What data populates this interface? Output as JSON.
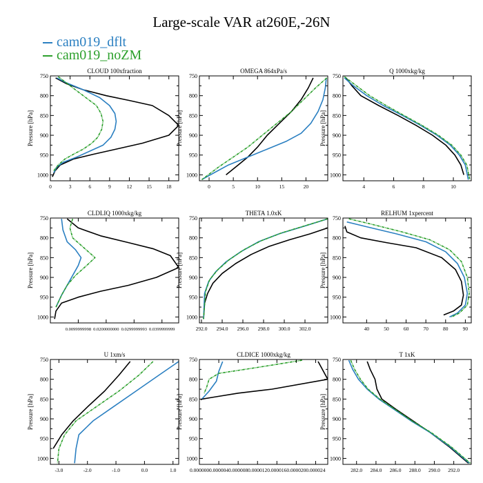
{
  "title": "Large-scale VAR at260E,-26N",
  "legend": [
    {
      "name": "cam019_dflt",
      "color": "#2a7fc1"
    },
    {
      "name": "cam019_noZM",
      "color": "#2ca02c"
    }
  ],
  "colors": {
    "reference": "#000000",
    "dflt": "#2a7fc1",
    "noZM": "#2ca02c"
  },
  "chart_data": [
    {
      "type": "line",
      "title": "CLOUD  100xfraction",
      "ylabel": "Pressure [hPa]",
      "ylim": [
        1015,
        750
      ],
      "xlim": [
        0,
        19.5
      ],
      "yticks": [
        750,
        800,
        850,
        900,
        950,
        1000
      ],
      "ytick_labels": [
        "750",
        "800",
        "850",
        "900",
        "950",
        "1000"
      ],
      "xticks": [
        0,
        3,
        6,
        9,
        12,
        15,
        18
      ],
      "xtick_labels": [
        "0",
        "3",
        "6",
        "9",
        "12",
        "15",
        "18"
      ],
      "series": [
        {
          "color": "#000000",
          "dash": false,
          "x": [
            0.8,
            2.5,
            5,
            8.5,
            12,
            15.5,
            18,
            19.5,
            18,
            14,
            10,
            6.5,
            3.5,
            1.5,
            0.7,
            0.3
          ],
          "y": [
            755,
            770,
            785,
            800,
            812,
            825,
            850,
            875,
            900,
            920,
            935,
            948,
            960,
            975,
            990,
            1005
          ]
        },
        {
          "color": "#2a7fc1",
          "dash": false,
          "x": [
            1,
            2.5,
            5,
            7.5,
            9,
            9.8,
            10,
            9.8,
            9.2,
            8,
            6,
            4,
            2,
            1,
            0.5
          ],
          "y": [
            755,
            768,
            785,
            805,
            825,
            845,
            865,
            885,
            905,
            925,
            940,
            955,
            968,
            980,
            995
          ]
        },
        {
          "color": "#2ca02c",
          "dash": true,
          "x": [
            1.2,
            3,
            5,
            7,
            7.7,
            8,
            7.8,
            7.2,
            6.3,
            5,
            3.5,
            2.2,
            1.2,
            0.5
          ],
          "y": [
            752,
            775,
            800,
            825,
            845,
            865,
            885,
            905,
            920,
            935,
            948,
            960,
            975,
            990
          ]
        }
      ]
    },
    {
      "type": "line",
      "title": "OMEGA  864xPa/s",
      "ylabel": "Pressure [hPa]",
      "ylim": [
        1015,
        750
      ],
      "xlim": [
        -2,
        24.5
      ],
      "yticks": [
        750,
        800,
        850,
        900,
        950,
        1000
      ],
      "ytick_labels": [
        "750",
        "800",
        "850",
        "900",
        "950",
        "1000"
      ],
      "xticks": [
        0,
        5,
        10,
        15,
        20
      ],
      "xtick_labels": [
        "0",
        "5",
        "10",
        "15",
        "20"
      ],
      "series": [
        {
          "color": "#000000",
          "dash": false,
          "x": [
            21.5,
            20.5,
            19,
            17,
            14.5,
            12,
            10,
            8,
            6,
            3.5
          ],
          "y": [
            755,
            780,
            810,
            840,
            870,
            900,
            930,
            955,
            975,
            1000
          ]
        },
        {
          "color": "#2a7fc1",
          "dash": false,
          "x": [
            24.2,
            24,
            23.5,
            22.5,
            21,
            19,
            16,
            12,
            8,
            4,
            1,
            -1.5
          ],
          "y": [
            755,
            780,
            810,
            840,
            870,
            895,
            915,
            935,
            955,
            975,
            995,
            1012
          ]
        },
        {
          "color": "#2ca02c",
          "dash": true,
          "x": [
            24.3,
            22,
            19.5,
            17,
            14,
            11,
            8,
            5,
            2,
            -1.5
          ],
          "y": [
            755,
            780,
            810,
            840,
            870,
            900,
            930,
            955,
            980,
            1012
          ]
        }
      ]
    },
    {
      "type": "line",
      "title": "Q  1000xkg/kg",
      "ylabel": "Pressure [hPa]",
      "ylim": [
        1015,
        750
      ],
      "xlim": [
        2.6,
        11.2
      ],
      "yticks": [
        750,
        800,
        850,
        900,
        950,
        1000
      ],
      "ytick_labels": [
        "750",
        "800",
        "850",
        "900",
        "950",
        "1000"
      ],
      "xticks": [
        4,
        6,
        8,
        10
      ],
      "xtick_labels": [
        "4",
        "6",
        "8",
        "10"
      ],
      "series": [
        {
          "color": "#000000",
          "dash": false,
          "x": [
            2.8,
            3.2,
            3.8,
            5,
            6.3,
            7.5,
            8.6,
            9.5,
            10.1,
            10.5,
            10.7
          ],
          "y": [
            755,
            775,
            800,
            825,
            850,
            875,
            900,
            925,
            950,
            975,
            1000
          ]
        },
        {
          "color": "#2a7fc1",
          "dash": false,
          "x": [
            2.7,
            3.3,
            4.2,
            5.3,
            6.6,
            7.8,
            8.9,
            9.8,
            10.4,
            10.8,
            11
          ],
          "y": [
            755,
            775,
            800,
            825,
            850,
            875,
            900,
            925,
            950,
            975,
            1012
          ]
        },
        {
          "color": "#2ca02c",
          "dash": true,
          "x": [
            2.7,
            3.5,
            4.4,
            5.5,
            6.7,
            7.9,
            9,
            9.9,
            10.5,
            10.9,
            11.1
          ],
          "y": [
            752,
            775,
            800,
            825,
            850,
            875,
            900,
            925,
            950,
            975,
            1012
          ]
        }
      ]
    },
    {
      "type": "line",
      "title": "CLDLIQ  1000xkg/kg",
      "ylabel": "Pressure [hPa]",
      "ylim": [
        1015,
        750
      ],
      "xlim": [
        0,
        0.046
      ],
      "yticks": [
        750,
        800,
        850,
        900,
        950,
        1000
      ],
      "ytick_labels": [
        "750",
        "800",
        "850",
        "900",
        "950",
        "1000"
      ],
      "xticks": [
        0.01,
        0.02,
        0.03,
        0.04
      ],
      "xtick_labels": [
        "0.0099999998",
        "0.0200000000",
        "0.0299999993",
        "0.0399999999"
      ],
      "series": [
        {
          "color": "#000000",
          "dash": false,
          "x": [
            0.006,
            0.01,
            0.018,
            0.028,
            0.037,
            0.043,
            0.046,
            0.038,
            0.028,
            0.018,
            0.01,
            0.004,
            0.002,
            0.0015
          ],
          "y": [
            752,
            775,
            795,
            812,
            828,
            845,
            875,
            900,
            920,
            935,
            950,
            965,
            985,
            1005
          ]
        },
        {
          "color": "#2a7fc1",
          "dash": false,
          "x": [
            0.004,
            0.0045,
            0.006,
            0.009,
            0.011,
            0.01,
            0.008,
            0.006,
            0.004,
            0.002
          ],
          "y": [
            752,
            780,
            810,
            830,
            850,
            870,
            895,
            920,
            945,
            975
          ]
        },
        {
          "color": "#2ca02c",
          "dash": true,
          "x": [
            0.008,
            0.007,
            0.008,
            0.012,
            0.016,
            0.013,
            0.009,
            0.006,
            0.004,
            0.002
          ],
          "y": [
            752,
            775,
            800,
            825,
            850,
            870,
            895,
            920,
            945,
            975
          ]
        }
      ]
    },
    {
      "type": "line",
      "title": "THETA  1.0xK",
      "ylabel": "Pressure [hPa]",
      "ylim": [
        1015,
        750
      ],
      "xlim": [
        291.8,
        304.2
      ],
      "yticks": [
        750,
        800,
        850,
        900,
        950,
        1000
      ],
      "ytick_labels": [
        "750",
        "800",
        "850",
        "900",
        "950",
        "1000"
      ],
      "xticks": [
        292,
        294,
        296,
        298,
        300,
        302
      ],
      "xtick_labels": [
        "292.0",
        "294.0",
        "296.0",
        "298.0",
        "300.0",
        "302.0"
      ],
      "series": [
        {
          "color": "#000000",
          "dash": false,
          "x": [
            304.2,
            302.5,
            300.5,
            298.5,
            296.8,
            295.3,
            294,
            293.1,
            292.6,
            292.3,
            292.2
          ],
          "y": [
            775,
            790,
            805,
            822,
            842,
            865,
            890,
            915,
            940,
            965,
            1005
          ]
        },
        {
          "color": "#2a7fc1",
          "dash": false,
          "x": [
            304.2,
            302,
            299.5,
            297.5,
            295.8,
            294.4,
            293.4,
            292.7,
            292.3,
            292.2
          ],
          "y": [
            752,
            770,
            790,
            810,
            835,
            860,
            885,
            910,
            940,
            1005
          ]
        },
        {
          "color": "#2ca02c",
          "dash": true,
          "x": [
            304.2,
            302.2,
            299.8,
            297.8,
            296.1,
            294.7,
            293.6,
            292.8,
            292.4,
            292.2
          ],
          "y": [
            752,
            768,
            787,
            807,
            830,
            855,
            880,
            905,
            935,
            1005
          ]
        }
      ]
    },
    {
      "type": "line",
      "title": "RELHUM  1xpercent",
      "ylabel": "Pressure [hPa]",
      "ylim": [
        1015,
        750
      ],
      "xlim": [
        28,
        93
      ],
      "yticks": [
        750,
        800,
        850,
        900,
        950,
        1000
      ],
      "ytick_labels": [
        "750",
        "800",
        "850",
        "900",
        "950",
        "1000"
      ],
      "xticks": [
        40,
        50,
        60,
        70,
        80,
        90
      ],
      "xtick_labels": [
        "40",
        "50",
        "60",
        "70",
        "80",
        "90"
      ],
      "series": [
        {
          "color": "#000000",
          "dash": false,
          "x": [
            29,
            30,
            37,
            50,
            65,
            78,
            85,
            88,
            89,
            88,
            84,
            79
          ],
          "y": [
            770,
            785,
            800,
            812,
            825,
            850,
            880,
            910,
            945,
            970,
            985,
            995
          ]
        },
        {
          "color": "#2a7fc1",
          "dash": false,
          "x": [
            30,
            40,
            55,
            70,
            80,
            86,
            89.5,
            91,
            90,
            86,
            82
          ],
          "y": [
            760,
            772,
            790,
            810,
            835,
            865,
            900,
            940,
            970,
            990,
            1000
          ]
        },
        {
          "color": "#2ca02c",
          "dash": true,
          "x": [
            31,
            42,
            58,
            72,
            82,
            88,
            91,
            92,
            91,
            87,
            83
          ],
          "y": [
            752,
            765,
            785,
            805,
            830,
            860,
            900,
            940,
            970,
            990,
            1000
          ]
        }
      ]
    },
    {
      "type": "line",
      "title": "U  1xm/s",
      "ylabel": "Pressure [hPa]",
      "ylim": [
        1015,
        750
      ],
      "xlim": [
        -3.3,
        1.2
      ],
      "yticks": [
        750,
        800,
        850,
        900,
        950,
        1000
      ],
      "ytick_labels": [
        "750",
        "800",
        "850",
        "900",
        "950",
        "1000"
      ],
      "xticks": [
        -3,
        -2,
        -1,
        0,
        1
      ],
      "xtick_labels": [
        "-3.0",
        "-2.0",
        "-1.0",
        "0.0",
        "1.0"
      ],
      "series": [
        {
          "color": "#000000",
          "dash": false,
          "x": [
            -0.5,
            -0.9,
            -1.4,
            -2.0,
            -2.5,
            -2.9,
            -3.2
          ],
          "y": [
            755,
            790,
            830,
            870,
            905,
            940,
            975
          ]
        },
        {
          "color": "#2a7fc1",
          "dash": false,
          "x": [
            1.2,
            0.5,
            -0.3,
            -1.1,
            -1.8,
            -2.3,
            -2.4,
            -2.45
          ],
          "y": [
            755,
            790,
            830,
            870,
            905,
            940,
            975,
            1012
          ]
        },
        {
          "color": "#2ca02c",
          "dash": true,
          "x": [
            0.3,
            -0.2,
            -0.9,
            -1.7,
            -2.4,
            -2.8,
            -3.0,
            -3.05
          ],
          "y": [
            755,
            790,
            830,
            870,
            905,
            940,
            975,
            1012
          ]
        }
      ]
    },
    {
      "type": "line",
      "title": "CLDICE  1000xkg/kg",
      "ylabel": "Pressure [hPa]",
      "ylim": [
        1015,
        750
      ],
      "xlim": [
        0,
        2.65e-05
      ],
      "yticks": [
        750,
        800,
        850,
        900,
        950,
        1000
      ],
      "ytick_labels": [
        "750",
        "800",
        "850",
        "900",
        "950",
        "1000"
      ],
      "xticks": [
        0,
        4e-06,
        8e-06,
        1.2e-05,
        1.6e-05,
        2e-05,
        2.4e-05
      ],
      "xtick_labels": [
        "0.000000",
        "0.000004",
        "0.000008",
        "0.000012",
        "0.000016",
        "0.000020",
        "0.000024"
      ],
      "series": [
        {
          "color": "#000000",
          "dash": false,
          "x": [
            2.45e-05,
            2.65e-05,
            1.5e-05,
            8e-06,
            3e-06,
            5e-07,
            3e-07
          ],
          "y": [
            755,
            800,
            825,
            835,
            845,
            850,
            852
          ]
        },
        {
          "color": "#2a7fc1",
          "dash": false,
          "x": [
            4.8e-06,
            4e-06,
            3.5e-06,
            2e-06,
            5e-07
          ],
          "y": [
            755,
            780,
            805,
            830,
            850
          ]
        },
        {
          "color": "#2ca02c",
          "dash": true,
          "x": [
            2.12e-05,
            1.2e-05,
            4e-06,
            2e-06,
            1.5e-06,
            1e-06
          ],
          "y": [
            752,
            770,
            785,
            800,
            820,
            835
          ]
        }
      ]
    },
    {
      "type": "line",
      "title": "T  1xK",
      "ylabel": "Pressure [hPa]",
      "ylim": [
        1015,
        750
      ],
      "xlim": [
        280.6,
        293.8
      ],
      "yticks": [
        750,
        800,
        850,
        900,
        950,
        1000
      ],
      "ytick_labels": [
        "750",
        "800",
        "850",
        "900",
        "950",
        "1000"
      ],
      "xticks": [
        282,
        284,
        286,
        288,
        290,
        292
      ],
      "xtick_labels": [
        "282.0",
        "284.0",
        "286.0",
        "288.0",
        "290.0",
        "292.0"
      ],
      "series": [
        {
          "color": "#000000",
          "dash": false,
          "x": [
            283.1,
            283.4,
            283.9,
            284.1,
            284.6,
            286,
            287.8,
            289.6,
            291.5,
            293.5
          ],
          "y": [
            755,
            775,
            800,
            825,
            850,
            875,
            905,
            935,
            970,
            1012
          ]
        },
        {
          "color": "#2a7fc1",
          "dash": false,
          "x": [
            281.2,
            281.6,
            282.2,
            283.1,
            284.3,
            285.8,
            287.6,
            289.6,
            291.6,
            293.6
          ],
          "y": [
            752,
            775,
            800,
            825,
            850,
            875,
            905,
            935,
            970,
            1012
          ]
        },
        {
          "color": "#2ca02c",
          "dash": true,
          "x": [
            281.4,
            281.8,
            282.4,
            283.2,
            284.4,
            285.9,
            287.7,
            289.7,
            291.7,
            293.7
          ],
          "y": [
            752,
            775,
            800,
            825,
            850,
            875,
            905,
            935,
            970,
            1012
          ]
        }
      ]
    }
  ]
}
